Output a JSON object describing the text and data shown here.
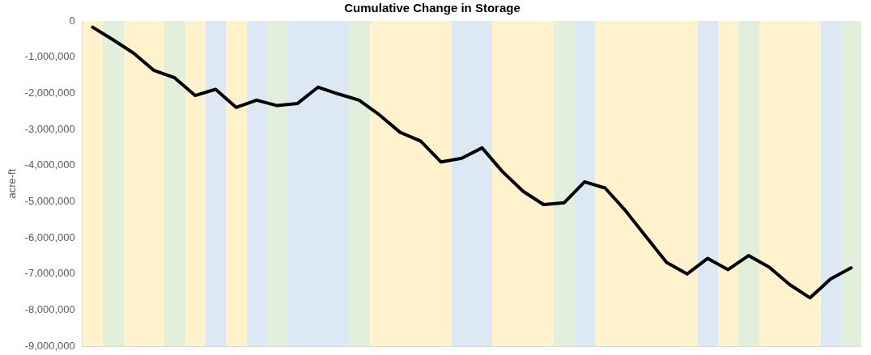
{
  "chart_data": {
    "type": "line",
    "title": "Cumulative Change in Storage",
    "ylabel": "acre-ft",
    "categories": [
      null,
      null,
      null,
      null,
      null,
      null,
      null,
      null,
      null,
      null,
      null,
      null,
      null,
      null,
      null,
      null,
      null,
      null,
      null,
      null,
      null,
      null,
      null,
      null,
      null,
      null,
      null,
      null,
      null,
      null,
      null,
      null,
      null,
      null,
      null,
      null,
      null,
      null
    ],
    "series": [
      {
        "color": "#000000",
        "values": [
          -170000,
          -520000,
          -890000,
          -1370000,
          -1570000,
          -2060000,
          -1890000,
          -2390000,
          -2190000,
          -2340000,
          -2280000,
          -1830000,
          -2020000,
          -2190000,
          -2600000,
          -3080000,
          -3320000,
          -3900000,
          -3800000,
          -3510000,
          -4170000,
          -4710000,
          -5080000,
          -5030000,
          -4450000,
          -4620000,
          -5250000,
          -5970000,
          -6680000,
          -7000000,
          -6570000,
          -6880000,
          -6490000,
          -6810000,
          -7290000,
          -7660000,
          -7140000,
          -6830000
        ]
      }
    ],
    "ylim": [
      -9000000,
      0
    ],
    "yticks": [
      0,
      {
        "value": -1000000,
        "label": "-1,000,000"
      },
      {
        "value": -2000000,
        "label": "-2,000,000"
      },
      {
        "value": -3000000,
        "label": "-3,000,000"
      },
      {
        "value": -4000000,
        "label": "-4,000,000"
      },
      {
        "value": -5000000,
        "label": "-5,000,000"
      },
      {
        "value": -6000000,
        "label": "-6,000,000"
      },
      {
        "value": -7000000,
        "label": "-7,000,000"
      },
      {
        "value": -8000000,
        "label": "-8,000,000"
      },
      {
        "value": -9000000,
        "label": "-9,000,000"
      }
    ],
    "grid": false,
    "legend": false,
    "marker": "none",
    "line_style": "solid"
  }
}
